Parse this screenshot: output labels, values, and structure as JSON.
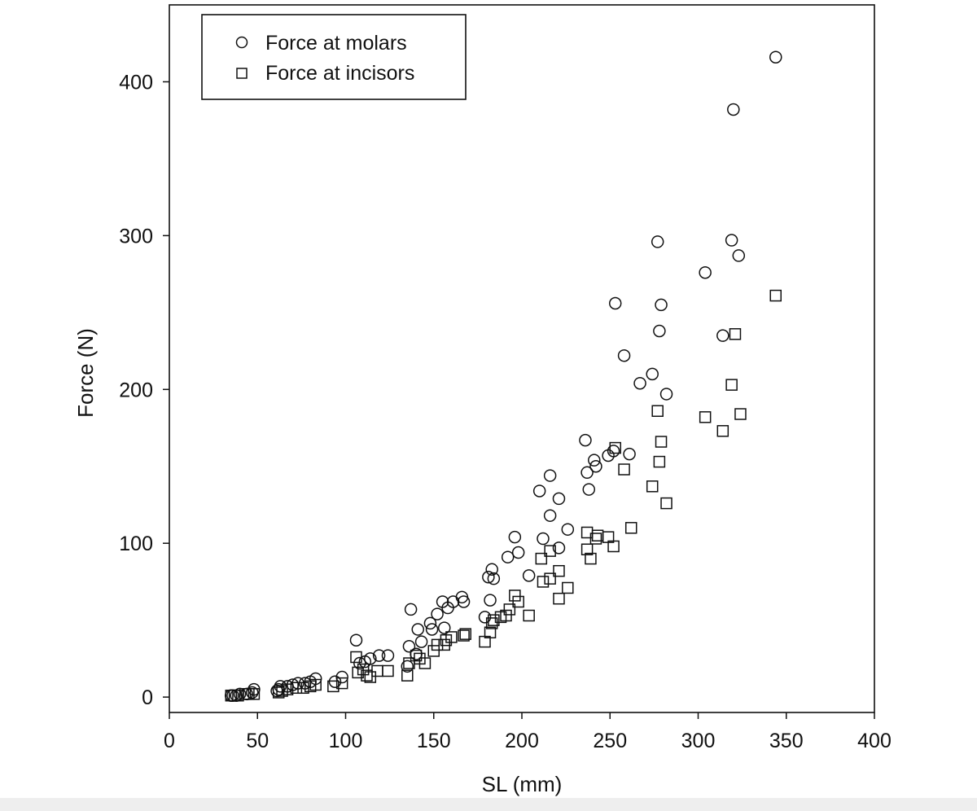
{
  "chart_data": {
    "type": "scatter",
    "xlabel": "SL (mm)",
    "ylabel": "Force (N)",
    "xlim": [
      0,
      400
    ],
    "ylim": [
      -10,
      450
    ],
    "x_ticks": [
      0,
      50,
      100,
      150,
      200,
      250,
      300,
      350,
      400
    ],
    "y_ticks": [
      0,
      100,
      200,
      300,
      400
    ],
    "legend_position": "top-left",
    "grid": false,
    "series": [
      {
        "name": "Force at molars",
        "marker": "circle",
        "points": [
          [
            35,
            1
          ],
          [
            36,
            1
          ],
          [
            38,
            1
          ],
          [
            40,
            2
          ],
          [
            44,
            2
          ],
          [
            47,
            3
          ],
          [
            48,
            5
          ],
          [
            61,
            4
          ],
          [
            62,
            5
          ],
          [
            63,
            7
          ],
          [
            67,
            7
          ],
          [
            70,
            8
          ],
          [
            73,
            9
          ],
          [
            77,
            9
          ],
          [
            80,
            10
          ],
          [
            83,
            12
          ],
          [
            94,
            10
          ],
          [
            98,
            13
          ],
          [
            106,
            37
          ],
          [
            108,
            22
          ],
          [
            111,
            23
          ],
          [
            114,
            25
          ],
          [
            119,
            27
          ],
          [
            124,
            27
          ],
          [
            135,
            20
          ],
          [
            136,
            33
          ],
          [
            137,
            57
          ],
          [
            140,
            28
          ],
          [
            141,
            44
          ],
          [
            143,
            36
          ],
          [
            148,
            48
          ],
          [
            149,
            44
          ],
          [
            152,
            54
          ],
          [
            155,
            62
          ],
          [
            156,
            45
          ],
          [
            158,
            58
          ],
          [
            161,
            62
          ],
          [
            166,
            65
          ],
          [
            167,
            62
          ],
          [
            179,
            52
          ],
          [
            181,
            78
          ],
          [
            182,
            63
          ],
          [
            183,
            83
          ],
          [
            184,
            77
          ],
          [
            192,
            91
          ],
          [
            196,
            104
          ],
          [
            198,
            94
          ],
          [
            204,
            79
          ],
          [
            210,
            134
          ],
          [
            212,
            103
          ],
          [
            216,
            118
          ],
          [
            216,
            144
          ],
          [
            221,
            97
          ],
          [
            221,
            129
          ],
          [
            226,
            109
          ],
          [
            236,
            167
          ],
          [
            237,
            146
          ],
          [
            238,
            135
          ],
          [
            241,
            154
          ],
          [
            242,
            150
          ],
          [
            249,
            157
          ],
          [
            252,
            160
          ],
          [
            253,
            256
          ],
          [
            258,
            222
          ],
          [
            261,
            158
          ],
          [
            267,
            204
          ],
          [
            274,
            210
          ],
          [
            277,
            296
          ],
          [
            278,
            238
          ],
          [
            279,
            255
          ],
          [
            282,
            197
          ],
          [
            304,
            276
          ],
          [
            314,
            235
          ],
          [
            319,
            297
          ],
          [
            320,
            382
          ],
          [
            323,
            287
          ],
          [
            344,
            416
          ]
        ]
      },
      {
        "name": "Force at incisors",
        "marker": "square",
        "points": [
          [
            35,
            1
          ],
          [
            37,
            1
          ],
          [
            39,
            1
          ],
          [
            43,
            2
          ],
          [
            45,
            2
          ],
          [
            48,
            2
          ],
          [
            62,
            3
          ],
          [
            64,
            4
          ],
          [
            67,
            5
          ],
          [
            72,
            6
          ],
          [
            76,
            6
          ],
          [
            80,
            7
          ],
          [
            83,
            8
          ],
          [
            93,
            7
          ],
          [
            98,
            9
          ],
          [
            106,
            26
          ],
          [
            107,
            16
          ],
          [
            110,
            18
          ],
          [
            112,
            14
          ],
          [
            114,
            13
          ],
          [
            118,
            17
          ],
          [
            124,
            17
          ],
          [
            135,
            14
          ],
          [
            136,
            22
          ],
          [
            140,
            27
          ],
          [
            142,
            25
          ],
          [
            145,
            22
          ],
          [
            150,
            30
          ],
          [
            152,
            34
          ],
          [
            156,
            34
          ],
          [
            157,
            37
          ],
          [
            160,
            39
          ],
          [
            167,
            40
          ],
          [
            168,
            41
          ],
          [
            179,
            36
          ],
          [
            182,
            42
          ],
          [
            183,
            48
          ],
          [
            184,
            50
          ],
          [
            188,
            52
          ],
          [
            191,
            53
          ],
          [
            193,
            57
          ],
          [
            196,
            66
          ],
          [
            198,
            62
          ],
          [
            204,
            53
          ],
          [
            211,
            90
          ],
          [
            212,
            75
          ],
          [
            216,
            95
          ],
          [
            216,
            77
          ],
          [
            221,
            82
          ],
          [
            221,
            64
          ],
          [
            226,
            71
          ],
          [
            237,
            107
          ],
          [
            237,
            96
          ],
          [
            239,
            90
          ],
          [
            242,
            103
          ],
          [
            243,
            105
          ],
          [
            249,
            104
          ],
          [
            252,
            98
          ],
          [
            253,
            162
          ],
          [
            258,
            148
          ],
          [
            262,
            110
          ],
          [
            274,
            137
          ],
          [
            277,
            186
          ],
          [
            278,
            153
          ],
          [
            279,
            166
          ],
          [
            282,
            126
          ],
          [
            304,
            182
          ],
          [
            314,
            173
          ],
          [
            319,
            203
          ],
          [
            321,
            236
          ],
          [
            324,
            184
          ],
          [
            344,
            261
          ]
        ]
      }
    ]
  }
}
